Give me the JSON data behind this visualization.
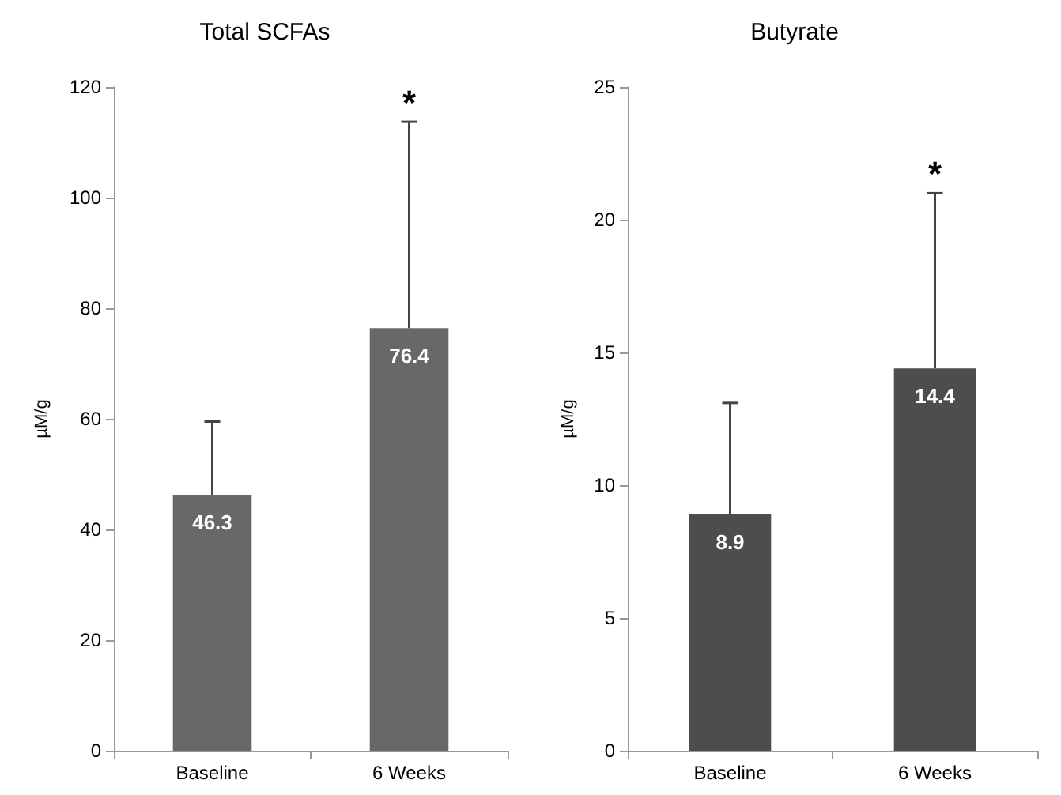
{
  "chart_data": [
    {
      "type": "bar",
      "title": "Total SCFAs",
      "ylabel": "µM/g",
      "categories": [
        "Baseline",
        "6 Weeks"
      ],
      "series": [
        {
          "color": "#686868",
          "values": [
            46.3,
            76.4
          ],
          "errors": [
            [
              46.3,
              59.5
            ],
            [
              76.4,
              113.7
            ]
          ]
        }
      ],
      "data_labels": true,
      "ylim": [
        0,
        120
      ],
      "yticks": [
        0,
        20,
        40,
        60,
        80,
        100,
        120
      ],
      "grid": false,
      "annotations": [
        "*"
      ]
    },
    {
      "type": "bar",
      "title": "Butyrate",
      "ylabel": "µM/g",
      "categories": [
        "Baseline",
        "6 Weeks"
      ],
      "series": [
        {
          "color": "#4d4d4d",
          "values": [
            8.9,
            14.4
          ],
          "errors": [
            [
              8.9,
              13.1
            ],
            [
              14.4,
              21.0
            ]
          ]
        }
      ],
      "data_labels": true,
      "ylim": [
        0,
        25
      ],
      "yticks": [
        0,
        5,
        10,
        15,
        20,
        25
      ],
      "grid": false,
      "annotations": [
        "*"
      ]
    }
  ]
}
